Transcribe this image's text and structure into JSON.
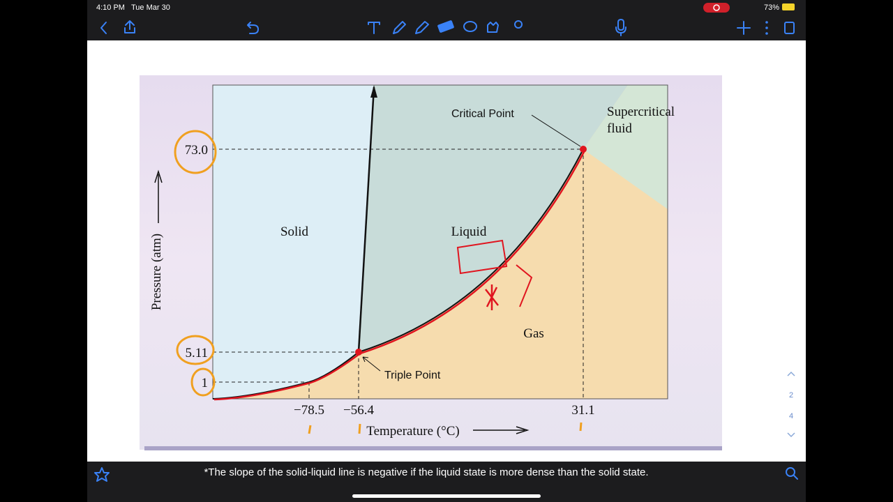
{
  "status_bar": {
    "time": "4:10 PM",
    "date": "Tue Mar 30",
    "battery": "73%"
  },
  "page_indicator": {
    "current": "2",
    "total": "4"
  },
  "diagram": {
    "y_axis_label": "Pressure (atm)",
    "x_axis_label": "Temperature (°C)",
    "y_labels": [
      "73.0",
      "5.11",
      "1"
    ],
    "x_labels": [
      "−78.5",
      "−56.4",
      "31.1"
    ],
    "regions": [
      "Solid",
      "Liquid",
      "Gas"
    ],
    "supercritical": [
      "Supercritical",
      "fluid"
    ],
    "annotations": [
      "Critical Point",
      "Triple Point"
    ]
  },
  "footnote": "*The slope of the solid-liquid line is negative if the liquid state is more dense than the solid state."
}
